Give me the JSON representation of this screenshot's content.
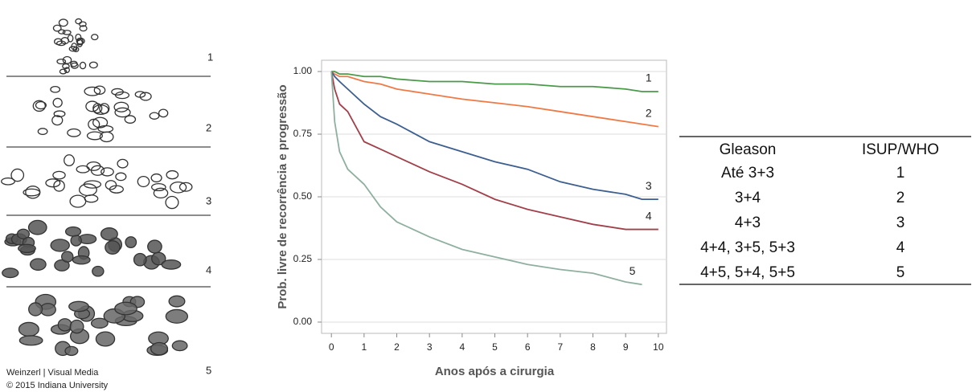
{
  "diagram": {
    "labels": [
      "1",
      "2",
      "3",
      "4",
      "5"
    ],
    "credit": [
      "Weinzerl | Visual Media",
      "© 2015 Indiana University"
    ]
  },
  "chart_data": {
    "type": "line",
    "xlabel": "Anos após a cirurgia",
    "ylabel": "Prob. livre de recorrência e progressão",
    "x": [
      0,
      0.1,
      0.25,
      0.5,
      1,
      1.5,
      2,
      3,
      4,
      5,
      6,
      7,
      8,
      9,
      9.5,
      10
    ],
    "series": [
      {
        "name": "1",
        "color": "#4a9a4a",
        "values": [
          1,
          1,
          0.99,
          0.99,
          0.98,
          0.98,
          0.97,
          0.96,
          0.96,
          0.95,
          0.95,
          0.94,
          0.94,
          0.93,
          0.92,
          0.92
        ]
      },
      {
        "name": "2",
        "color": "#f07a45",
        "values": [
          1,
          0.99,
          0.98,
          0.98,
          0.96,
          0.95,
          0.93,
          0.91,
          0.89,
          0.875,
          0.86,
          0.84,
          0.82,
          0.8,
          0.79,
          0.78
        ]
      },
      {
        "name": "3",
        "color": "#3d5f8f",
        "values": [
          1,
          0.98,
          0.96,
          0.93,
          0.87,
          0.82,
          0.79,
          0.72,
          0.68,
          0.64,
          0.61,
          0.56,
          0.53,
          0.51,
          0.49,
          0.49
        ]
      },
      {
        "name": "4",
        "color": "#a0404a",
        "values": [
          1,
          0.93,
          0.87,
          0.84,
          0.72,
          0.69,
          0.66,
          0.6,
          0.55,
          0.49,
          0.45,
          0.42,
          0.39,
          0.37,
          0.37,
          0.37
        ]
      },
      {
        "name": "5",
        "color": "#8fb0a0",
        "values": [
          1,
          0.8,
          0.68,
          0.61,
          0.55,
          0.46,
          0.4,
          0.34,
          0.29,
          0.26,
          0.23,
          0.21,
          0.195,
          0.16,
          0.15,
          null
        ]
      }
    ],
    "xlim": [
      -0.3,
      10.25
    ],
    "ylim": [
      -0.045,
      1.045
    ],
    "xticks": [
      0,
      1,
      2,
      3,
      4,
      5,
      6,
      7,
      8,
      9,
      10
    ],
    "yticks": [
      {
        "value": 0,
        "label": "0.00"
      },
      {
        "value": 0.25,
        "label": "0.25"
      },
      {
        "value": 0.5,
        "label": "0.50"
      },
      {
        "value": 0.75,
        "label": "0.75"
      },
      {
        "value": 1,
        "label": "1.00"
      }
    ],
    "grid": true
  },
  "table": {
    "header": [
      "Gleason",
      "ISUP/WHO"
    ],
    "rows": [
      [
        "Até 3+3",
        "1"
      ],
      [
        "3+4",
        "2"
      ],
      [
        "4+3",
        "3"
      ],
      [
        "4+4, 3+5, 5+3",
        "4"
      ],
      [
        "4+5, 5+4, 5+5",
        "5"
      ]
    ]
  }
}
